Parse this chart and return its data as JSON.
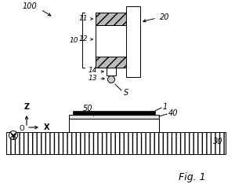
{
  "bg_color": "#ffffff",
  "fig_label": "Fig. 1",
  "label_100": "100",
  "label_20": "20",
  "label_10": "10",
  "label_11": "11",
  "label_12": "12",
  "label_13": "13",
  "label_14": "14",
  "label_S": "S",
  "label_1": "1",
  "label_40": "40",
  "label_50": "50",
  "label_30": "30",
  "label_Z": "Z",
  "label_X": "X",
  "label_O": "O",
  "label_Y": "Y",
  "gray_hatch": "#bbbbbb",
  "black": "#000000",
  "white": "#ffffff"
}
